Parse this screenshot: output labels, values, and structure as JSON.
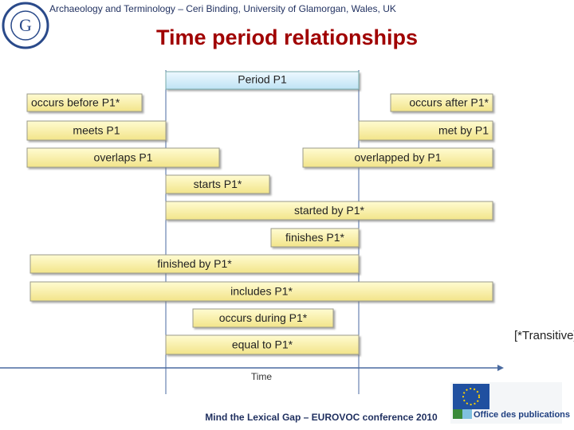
{
  "header": {
    "text": "Archaeology and Terminology – Ceri Binding, University of Glamorgan, Wales, UK",
    "title": "Time period relationships"
  },
  "diagram": {
    "reference": "Period P1",
    "relations": [
      "occurs before P1*",
      "occurs after P1*",
      "meets P1",
      "met by P1",
      "overlaps P1",
      "overlapped by P1",
      "starts P1*",
      "started by P1*",
      "finishes P1*",
      "finished by P1*",
      "includes P1*",
      "occurs during P1*",
      "equal to P1*"
    ],
    "axis_label": "Time",
    "note": "[*Transitive]"
  },
  "footer": {
    "text": "Mind the Lexical Gap – EUROVOC conference 2010",
    "logo_text": "Office des publications"
  }
}
